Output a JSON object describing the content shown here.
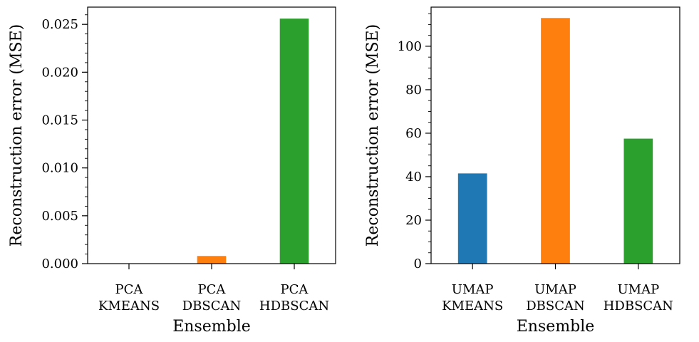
{
  "chart_data": [
    {
      "type": "bar",
      "categories": [
        [
          "PCA",
          "KMEANS"
        ],
        [
          "PCA",
          "DBSCAN"
        ],
        [
          "PCA",
          "HDBSCAN"
        ]
      ],
      "values": [
        0.0,
        0.0008,
        0.0256
      ],
      "colors": [
        "#1f77b4",
        "#ff7f0e",
        "#2ca02c"
      ],
      "xlabel": "Ensemble",
      "ylabel": "Reconstruction error (MSE)",
      "ylim": [
        0,
        0.0268
      ],
      "yticks": [
        0.0,
        0.005,
        0.01,
        0.015,
        0.02,
        0.025
      ],
      "ytick_labels": [
        "0.000",
        "0.005",
        "0.010",
        "0.015",
        "0.020",
        "0.025"
      ],
      "minor_step": 0.001,
      "grid": false
    },
    {
      "type": "bar",
      "categories": [
        [
          "UMAP",
          "KMEANS"
        ],
        [
          "UMAP",
          "DBSCAN"
        ],
        [
          "UMAP",
          "HDBSCAN"
        ]
      ],
      "values": [
        41.5,
        113.0,
        57.5
      ],
      "colors": [
        "#1f77b4",
        "#ff7f0e",
        "#2ca02c"
      ],
      "xlabel": "Ensemble",
      "ylabel": "Reconstruction error (MSE)",
      "ylim": [
        0,
        118
      ],
      "yticks": [
        0,
        20,
        40,
        60,
        80,
        100
      ],
      "ytick_labels": [
        "0",
        "20",
        "40",
        "60",
        "80",
        "100"
      ],
      "minor_step": 5,
      "grid": false
    }
  ]
}
